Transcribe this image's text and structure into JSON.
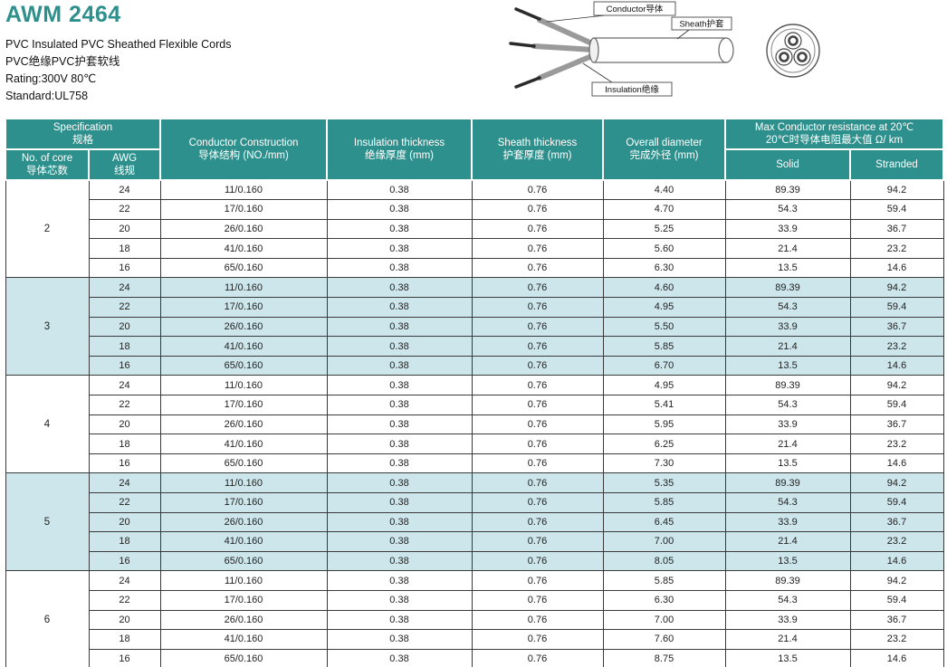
{
  "colors": {
    "accent_teal": "#2E908C",
    "row_alt_blue": "#CDE6EB"
  },
  "header": {
    "title": "AWM 2464",
    "subtitle_en": "PVC Insulated PVC Sheathed Flexible Cords",
    "subtitle_cn": "PVC绝缘PVC护套软线",
    "rating": "Rating:300V 80℃",
    "standard": "Standard:UL758"
  },
  "diagram": {
    "labels": {
      "conductor": "Conductor导体",
      "sheath": "Sheath护套",
      "insulation": "Insulation绝缘"
    }
  },
  "table": {
    "headers": {
      "spec_en": "Specification",
      "spec_cn": "规格",
      "core_en": "No. of core",
      "core_cn": "导体芯数",
      "awg_en": "AWG",
      "awg_cn": "线规",
      "conductor_en": "Conductor Construction",
      "conductor_cn": "导体结构 (NO./mm)",
      "insulation_en": "Insulation thickness",
      "insulation_cn": "绝缘厚度 (mm)",
      "sheath_en": "Sheath thickness",
      "sheath_cn": "护套厚度 (mm)",
      "overall_en": "Overall diameter",
      "overall_cn": "完成外径 (mm)",
      "resistance_en": "Max Conductor resistance at 20℃",
      "resistance_cn": "20℃时导体电阻最大值  Ω/ km",
      "solid": "Solid",
      "stranded": "Stranded"
    },
    "groups": [
      {
        "cores": "2",
        "rows": [
          [
            "24",
            "11/0.160",
            "0.38",
            "0.76",
            "4.40",
            "89.39",
            "94.2"
          ],
          [
            "22",
            "17/0.160",
            "0.38",
            "0.76",
            "4.70",
            "54.3",
            "59.4"
          ],
          [
            "20",
            "26/0.160",
            "0.38",
            "0.76",
            "5.25",
            "33.9",
            "36.7"
          ],
          [
            "18",
            "41/0.160",
            "0.38",
            "0.76",
            "5.60",
            "21.4",
            "23.2"
          ],
          [
            "16",
            "65/0.160",
            "0.38",
            "0.76",
            "6.30",
            "13.5",
            "14.6"
          ]
        ]
      },
      {
        "cores": "3",
        "rows": [
          [
            "24",
            "11/0.160",
            "0.38",
            "0.76",
            "4.60",
            "89.39",
            "94.2"
          ],
          [
            "22",
            "17/0.160",
            "0.38",
            "0.76",
            "4.95",
            "54.3",
            "59.4"
          ],
          [
            "20",
            "26/0.160",
            "0.38",
            "0.76",
            "5.50",
            "33.9",
            "36.7"
          ],
          [
            "18",
            "41/0.160",
            "0.38",
            "0.76",
            "5.85",
            "21.4",
            "23.2"
          ],
          [
            "16",
            "65/0.160",
            "0.38",
            "0.76",
            "6.70",
            "13.5",
            "14.6"
          ]
        ]
      },
      {
        "cores": "4",
        "rows": [
          [
            "24",
            "11/0.160",
            "0.38",
            "0.76",
            "4.95",
            "89.39",
            "94.2"
          ],
          [
            "22",
            "17/0.160",
            "0.38",
            "0.76",
            "5.41",
            "54.3",
            "59.4"
          ],
          [
            "20",
            "26/0.160",
            "0.38",
            "0.76",
            "5.95",
            "33.9",
            "36.7"
          ],
          [
            "18",
            "41/0.160",
            "0.38",
            "0.76",
            "6.25",
            "21.4",
            "23.2"
          ],
          [
            "16",
            "65/0.160",
            "0.38",
            "0.76",
            "7.30",
            "13.5",
            "14.6"
          ]
        ]
      },
      {
        "cores": "5",
        "rows": [
          [
            "24",
            "11/0.160",
            "0.38",
            "0.76",
            "5.35",
            "89.39",
            "94.2"
          ],
          [
            "22",
            "17/0.160",
            "0.38",
            "0.76",
            "5.85",
            "54.3",
            "59.4"
          ],
          [
            "20",
            "26/0.160",
            "0.38",
            "0.76",
            "6.45",
            "33.9",
            "36.7"
          ],
          [
            "18",
            "41/0.160",
            "0.38",
            "0.76",
            "7.00",
            "21.4",
            "23.2"
          ],
          [
            "16",
            "65/0.160",
            "0.38",
            "0.76",
            "8.05",
            "13.5",
            "14.6"
          ]
        ]
      },
      {
        "cores": "6",
        "rows": [
          [
            "24",
            "11/0.160",
            "0.38",
            "0.76",
            "5.85",
            "89.39",
            "94.2"
          ],
          [
            "22",
            "17/0.160",
            "0.38",
            "0.76",
            "6.30",
            "54.3",
            "59.4"
          ],
          [
            "20",
            "26/0.160",
            "0.38",
            "0.76",
            "7.00",
            "33.9",
            "36.7"
          ],
          [
            "18",
            "41/0.160",
            "0.38",
            "0.76",
            "7.60",
            "21.4",
            "23.2"
          ],
          [
            "16",
            "65/0.160",
            "0.38",
            "0.76",
            "8.75",
            "13.5",
            "14.6"
          ]
        ]
      }
    ]
  }
}
